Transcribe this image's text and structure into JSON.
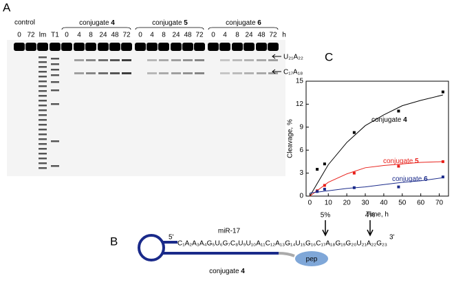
{
  "panels": {
    "a": "A",
    "b": "B",
    "c": "C"
  },
  "gel": {
    "groups": [
      "control",
      "conjugate 4",
      "conjugate 5",
      "conjugate 6"
    ],
    "lanes": [
      "0",
      "72",
      "lm",
      "T1",
      "0",
      "4",
      "8",
      "24",
      "48",
      "72",
      "0",
      "4",
      "8",
      "24",
      "48",
      "72",
      "0",
      "4",
      "8",
      "24",
      "48",
      "72"
    ],
    "unit": "h",
    "bands": [
      "U₂₁A₂₂",
      "C₁₇A₁₈"
    ]
  },
  "diagram": {
    "name": "miR-17",
    "five_prime": "5'",
    "three_prime": "3'",
    "sequence": "C₁A₂A₃A₄G₅U₆G₇C₈U₉U₁₀A₁₁C₁₂A₁₃G₁₄U₁₅G₁₆C₁₇A₁₈G₁₉G₂₀U₂₁A₂₂G₂₃",
    "conjugate": "conjugate 4",
    "peptide": "pep",
    "sites": [
      "5%",
      "4%"
    ]
  },
  "chart_data": {
    "type": "scatter",
    "xlabel": "Time, h",
    "ylabel": "Cleavage, %",
    "xlim": [
      -2,
      75
    ],
    "ylim": [
      0,
      15
    ],
    "xticks": [
      0,
      10,
      20,
      30,
      40,
      50,
      60,
      70
    ],
    "yticks": [
      0,
      3,
      6,
      9,
      12,
      15
    ],
    "series": [
      {
        "name": "conjugate 4",
        "color": "#000000",
        "x": [
          4,
          8,
          24,
          48,
          72
        ],
        "values": [
          3.5,
          4.2,
          8.3,
          11.1,
          13.6
        ],
        "fit": {
          "x": [
            0,
            10,
            20,
            30,
            40,
            50,
            60,
            72
          ],
          "values": [
            0,
            4.1,
            7.0,
            9.2,
            10.6,
            11.8,
            12.5,
            13.2
          ]
        }
      },
      {
        "name": "conjugate 5",
        "color": "#e8201a",
        "x": [
          4,
          8,
          24,
          48,
          72
        ],
        "values": [
          0.7,
          1.4,
          3.0,
          3.9,
          4.5
        ],
        "fit": {
          "x": [
            0,
            10,
            20,
            30,
            40,
            50,
            60,
            72
          ],
          "values": [
            0,
            1.8,
            2.9,
            3.7,
            4.0,
            4.2,
            4.4,
            4.5
          ]
        }
      },
      {
        "name": "conjugate 6",
        "color": "#1a2a8a",
        "x": [
          4,
          8,
          24,
          48,
          72
        ],
        "values": [
          0.6,
          0.9,
          1.1,
          1.2,
          2.5
        ],
        "fit": {
          "x": [
            0,
            10,
            20,
            30,
            40,
            50,
            60,
            72
          ],
          "values": [
            0.4,
            0.7,
            1.0,
            1.2,
            1.5,
            1.8,
            2.0,
            2.4
          ]
        }
      }
    ]
  }
}
